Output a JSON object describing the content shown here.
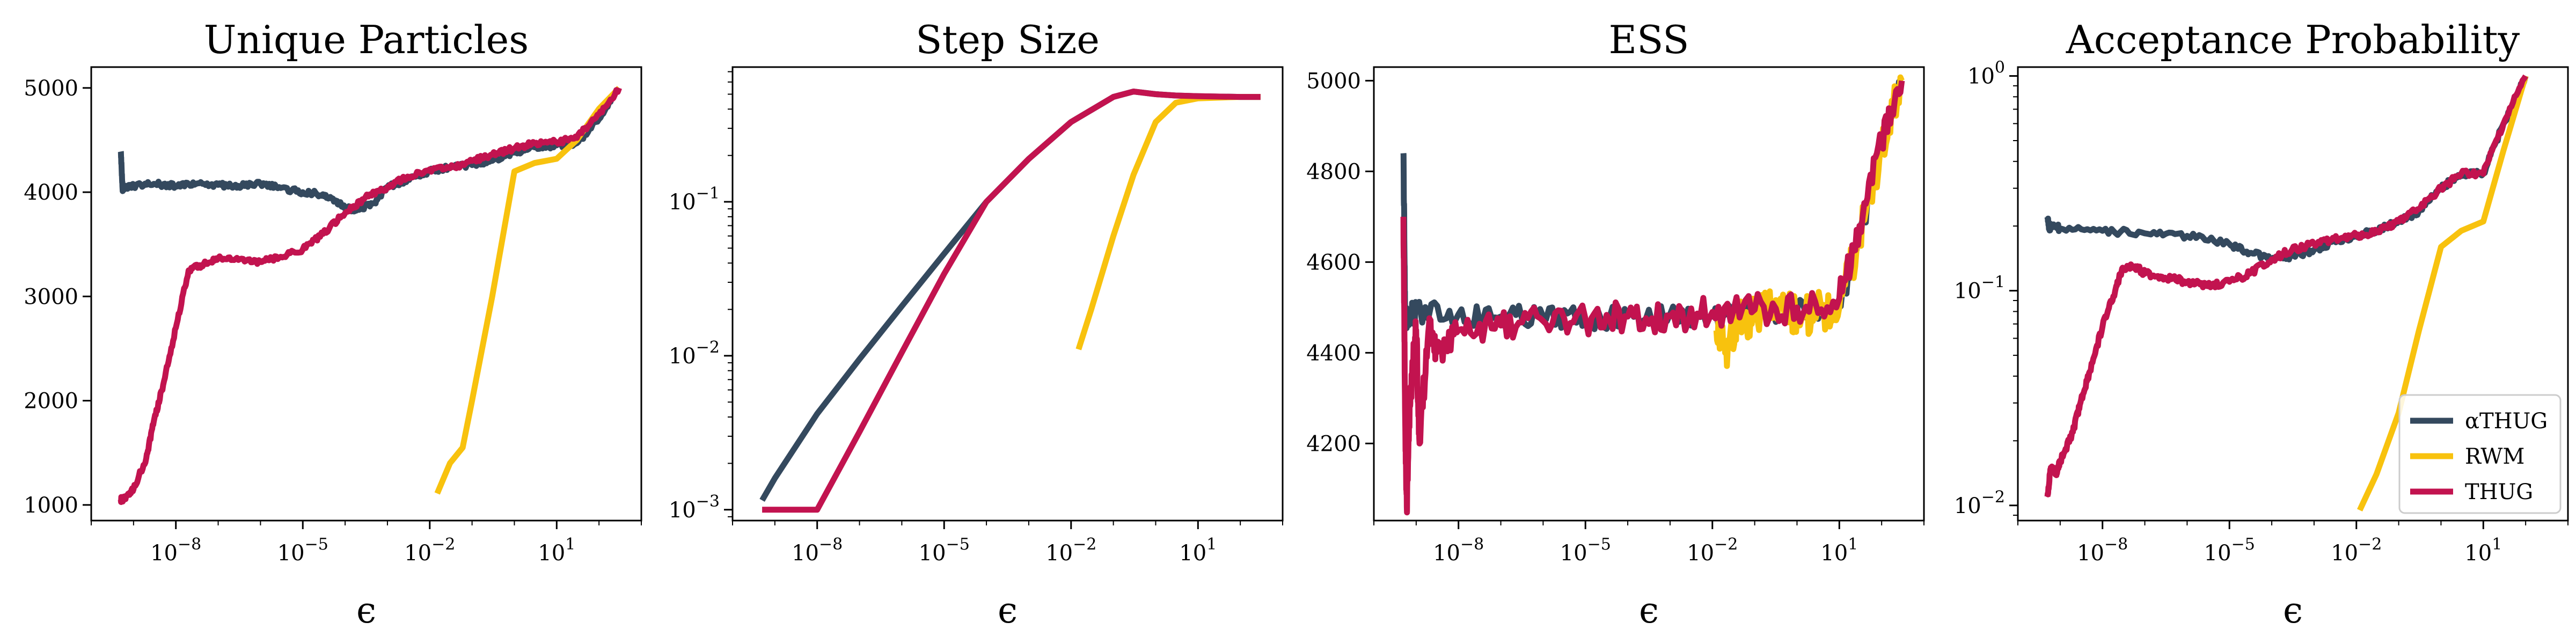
{
  "chart_data": [
    {
      "type": "line",
      "title": "Unique Particles",
      "xlabel": "ϵ",
      "ylabel": "",
      "xscale": "log",
      "yscale": "linear",
      "xlim": [
        1e-10,
        1000.0
      ],
      "ylim": [
        850,
        5200
      ],
      "xticks": [
        {
          "v": 1e-08,
          "base": "10",
          "exp": "−8"
        },
        {
          "v": 1e-05,
          "base": "10",
          "exp": "−5"
        },
        {
          "v": 0.01,
          "base": "10",
          "exp": "−2"
        },
        {
          "v": 10,
          "base": "10",
          "exp": "1"
        }
      ],
      "yticks": [
        {
          "v": 1000,
          "label": "1000"
        },
        {
          "v": 2000,
          "label": "2000"
        },
        {
          "v": 3000,
          "label": "3000"
        },
        {
          "v": 4000,
          "label": "4000"
        },
        {
          "v": 5000,
          "label": "5000"
        }
      ],
      "series": [
        {
          "name": "αTHUG",
          "color": "#34495e",
          "jitter": 25,
          "x": [
            5e-10,
            5.5e-10,
            6e-10,
            1e-09,
            3e-09,
            1e-08,
            3e-08,
            1e-07,
            3e-07,
            1e-06,
            3e-06,
            1e-05,
            3e-05,
            6e-05,
            0.0001,
            0.0002,
            0.0005,
            0.001,
            0.003,
            0.01,
            0.03,
            0.1,
            0.3,
            1,
            3,
            10,
            30,
            100,
            300
          ],
          "y": [
            4390,
            4030,
            4040,
            4060,
            4080,
            4060,
            4080,
            4070,
            4060,
            4080,
            4040,
            4000,
            3980,
            3920,
            3850,
            3830,
            3900,
            4050,
            4120,
            4200,
            4240,
            4260,
            4300,
            4380,
            4430,
            4450,
            4470,
            4700,
            5000
          ]
        },
        {
          "name": "RWM",
          "color": "#f8c20e",
          "jitter": 0,
          "x": [
            0.015,
            0.03,
            0.06,
            0.1,
            0.3,
            1,
            3,
            10,
            30,
            100,
            300
          ],
          "y": [
            1110,
            1400,
            1550,
            2000,
            3000,
            4200,
            4280,
            4320,
            4500,
            4800,
            5000
          ]
        },
        {
          "name": "THUG",
          "color": "#c2134f",
          "jitter": 25,
          "x": [
            5e-10,
            6e-10,
            1e-09,
            2e-09,
            3e-09,
            5e-09,
            1e-08,
            2e-08,
            4e-08,
            1e-07,
            3e-07,
            1e-06,
            3e-06,
            1e-05,
            3e-05,
            0.0001,
            0.0003,
            0.001,
            0.003,
            0.01,
            0.03,
            0.1,
            0.3,
            1,
            3,
            10,
            30,
            100,
            300
          ],
          "y": [
            1050,
            1060,
            1150,
            1450,
            1800,
            2150,
            2700,
            3250,
            3300,
            3370,
            3350,
            3330,
            3380,
            3450,
            3600,
            3800,
            3950,
            4050,
            4150,
            4220,
            4230,
            4300,
            4360,
            4420,
            4470,
            4480,
            4520,
            4750,
            5000
          ]
        }
      ]
    },
    {
      "type": "line",
      "title": "Step Size",
      "xlabel": "ϵ",
      "ylabel": "",
      "xscale": "log",
      "yscale": "log",
      "xlim": [
        1e-10,
        1000.0
      ],
      "ylim": [
        0.00085,
        0.75
      ],
      "xticks": [
        {
          "v": 1e-08,
          "base": "10",
          "exp": "−8"
        },
        {
          "v": 1e-05,
          "base": "10",
          "exp": "−5"
        },
        {
          "v": 0.01,
          "base": "10",
          "exp": "−2"
        },
        {
          "v": 10,
          "base": "10",
          "exp": "1"
        }
      ],
      "yticks": [
        {
          "v": 0.001,
          "base": "10",
          "exp": "−3"
        },
        {
          "v": 0.01,
          "base": "10",
          "exp": "−2"
        },
        {
          "v": 0.1,
          "base": "10",
          "exp": "−1"
        }
      ],
      "series": [
        {
          "name": "αTHUG",
          "color": "#34495e",
          "jitter": 0,
          "x": [
            5e-10,
            1e-09,
            1e-08,
            1e-07,
            1e-06,
            1e-05,
            0.0001,
            0.001,
            0.01,
            0.1,
            0.3,
            1,
            3,
            10,
            100,
            300
          ],
          "y": [
            0.00115,
            0.0016,
            0.0042,
            0.0095,
            0.021,
            0.046,
            0.1,
            0.19,
            0.33,
            0.48,
            0.52,
            0.5,
            0.49,
            0.485,
            0.48,
            0.48
          ]
        },
        {
          "name": "RWM",
          "color": "#f8c20e",
          "jitter": 0,
          "x": [
            0.015,
            0.03,
            0.1,
            0.3,
            1,
            3,
            10,
            100,
            300
          ],
          "y": [
            0.011,
            0.02,
            0.06,
            0.15,
            0.33,
            0.44,
            0.47,
            0.48,
            0.48
          ]
        },
        {
          "name": "THUG",
          "color": "#c2134f",
          "jitter": 0,
          "x": [
            5e-10,
            1e-09,
            1e-08,
            1e-07,
            1e-06,
            1e-05,
            0.0001,
            0.001,
            0.01,
            0.1,
            0.3,
            1,
            3,
            10,
            100,
            300
          ],
          "y": [
            0.001,
            0.001,
            0.001,
            0.0032,
            0.0105,
            0.034,
            0.1,
            0.19,
            0.33,
            0.48,
            0.52,
            0.5,
            0.49,
            0.485,
            0.48,
            0.48
          ]
        }
      ]
    },
    {
      "type": "line",
      "title": "ESS",
      "xlabel": "ϵ",
      "ylabel": "",
      "xscale": "log",
      "yscale": "linear",
      "xlim": [
        1e-10,
        1000.0
      ],
      "ylim": [
        4030,
        5030
      ],
      "xticks": [
        {
          "v": 1e-08,
          "base": "10",
          "exp": "−8"
        },
        {
          "v": 1e-05,
          "base": "10",
          "exp": "−5"
        },
        {
          "v": 0.01,
          "base": "10",
          "exp": "−2"
        },
        {
          "v": 10,
          "base": "10",
          "exp": "1"
        }
      ],
      "yticks": [
        {
          "v": 4200,
          "label": "4200"
        },
        {
          "v": 4400,
          "label": "4400"
        },
        {
          "v": 4600,
          "label": "4600"
        },
        {
          "v": 4800,
          "label": "4800"
        },
        {
          "v": 5000,
          "label": "5000"
        }
      ],
      "series": [
        {
          "name": "αTHUG",
          "color": "#34495e",
          "jitter": 25,
          "x": [
            5e-10,
            5.5e-10,
            6e-10,
            1e-09,
            1e-08,
            1e-07,
            1e-06,
            1e-05,
            0.0001,
            0.001,
            0.01,
            0.1,
            1,
            10,
            30,
            100,
            300
          ],
          "y": [
            4840,
            4470,
            4480,
            4490,
            4485,
            4480,
            4480,
            4475,
            4480,
            4485,
            4480,
            4490,
            4495,
            4500,
            4650,
            4850,
            5000
          ]
        },
        {
          "name": "RWM",
          "color": "#f8c20e",
          "jitter": 45,
          "x": [
            0.012,
            0.02,
            0.04,
            0.08,
            0.2,
            0.5,
            1,
            3,
            10,
            30,
            100,
            300
          ],
          "y": [
            4450,
            4400,
            4470,
            4480,
            4500,
            4490,
            4480,
            4490,
            4500,
            4650,
            4850,
            5000
          ]
        },
        {
          "name": "THUG",
          "color": "#c2134f",
          "jitter": 35,
          "x": [
            5e-10,
            5.5e-10,
            6e-10,
            7e-10,
            8e-10,
            1e-09,
            1.2e-09,
            2e-09,
            3e-09,
            1e-08,
            1e-07,
            1e-06,
            1e-05,
            0.0001,
            0.001,
            0.01,
            0.1,
            1,
            10,
            30,
            100,
            300
          ],
          "y": [
            4700,
            4250,
            4060,
            4280,
            4350,
            4450,
            4200,
            4460,
            4400,
            4450,
            4460,
            4470,
            4475,
            4480,
            4480,
            4490,
            4495,
            4500,
            4520,
            4680,
            4860,
            5000
          ]
        }
      ]
    },
    {
      "type": "line",
      "title": "Acceptance Probability",
      "xlabel": "ϵ",
      "ylabel": "",
      "xscale": "log",
      "yscale": "log",
      "xlim": [
        1e-10,
        1000.0
      ],
      "ylim": [
        0.0085,
        1.1
      ],
      "xticks": [
        {
          "v": 1e-08,
          "base": "10",
          "exp": "−8"
        },
        {
          "v": 1e-05,
          "base": "10",
          "exp": "−5"
        },
        {
          "v": 0.01,
          "base": "10",
          "exp": "−2"
        },
        {
          "v": 10,
          "base": "10",
          "exp": "1"
        }
      ],
      "yticks": [
        {
          "v": 0.01,
          "base": "10",
          "exp": "−2"
        },
        {
          "v": 0.1,
          "base": "10",
          "exp": "−1"
        },
        {
          "v": 1,
          "base": "10",
          "exp": "0"
        }
      ],
      "legend": "lower right",
      "series": [
        {
          "name": "αTHUG",
          "color": "#34495e",
          "jitter": 0.012,
          "x": [
            5e-10,
            5.5e-10,
            6e-10,
            1e-09,
            1e-08,
            1e-07,
            1e-06,
            1e-05,
            3e-05,
            0.0001,
            0.0003,
            0.001,
            0.003,
            0.01,
            0.03,
            0.1,
            0.3,
            1,
            3,
            10,
            30,
            100
          ],
          "y": [
            0.22,
            0.195,
            0.2,
            0.195,
            0.19,
            0.185,
            0.18,
            0.165,
            0.15,
            0.14,
            0.145,
            0.155,
            0.17,
            0.18,
            0.19,
            0.21,
            0.235,
            0.3,
            0.35,
            0.35,
            0.6,
            1.0
          ]
        },
        {
          "name": "RWM",
          "color": "#f8c20e",
          "jitter": 0,
          "x": [
            0.012,
            0.03,
            0.1,
            0.3,
            1,
            3,
            10,
            30,
            100
          ],
          "y": [
            0.0095,
            0.014,
            0.027,
            0.065,
            0.16,
            0.19,
            0.21,
            0.45,
            1.0
          ]
        },
        {
          "name": "THUG",
          "color": "#c2134f",
          "jitter": 0.012,
          "x": [
            5e-10,
            6e-10,
            8e-10,
            1e-09,
            2e-09,
            3e-09,
            5e-09,
            1e-08,
            2e-08,
            3e-08,
            6e-08,
            1e-07,
            3e-07,
            1e-06,
            3e-06,
            1e-05,
            3e-05,
            0.0001,
            0.0003,
            0.001,
            0.003,
            0.01,
            0.03,
            0.1,
            0.3,
            1,
            3,
            10,
            30,
            100
          ],
          "y": [
            0.011,
            0.015,
            0.014,
            0.016,
            0.022,
            0.03,
            0.042,
            0.068,
            0.1,
            0.128,
            0.13,
            0.12,
            0.115,
            0.11,
            0.105,
            0.11,
            0.12,
            0.14,
            0.155,
            0.165,
            0.175,
            0.18,
            0.19,
            0.21,
            0.24,
            0.3,
            0.35,
            0.35,
            0.6,
            1.0
          ]
        }
      ]
    }
  ]
}
